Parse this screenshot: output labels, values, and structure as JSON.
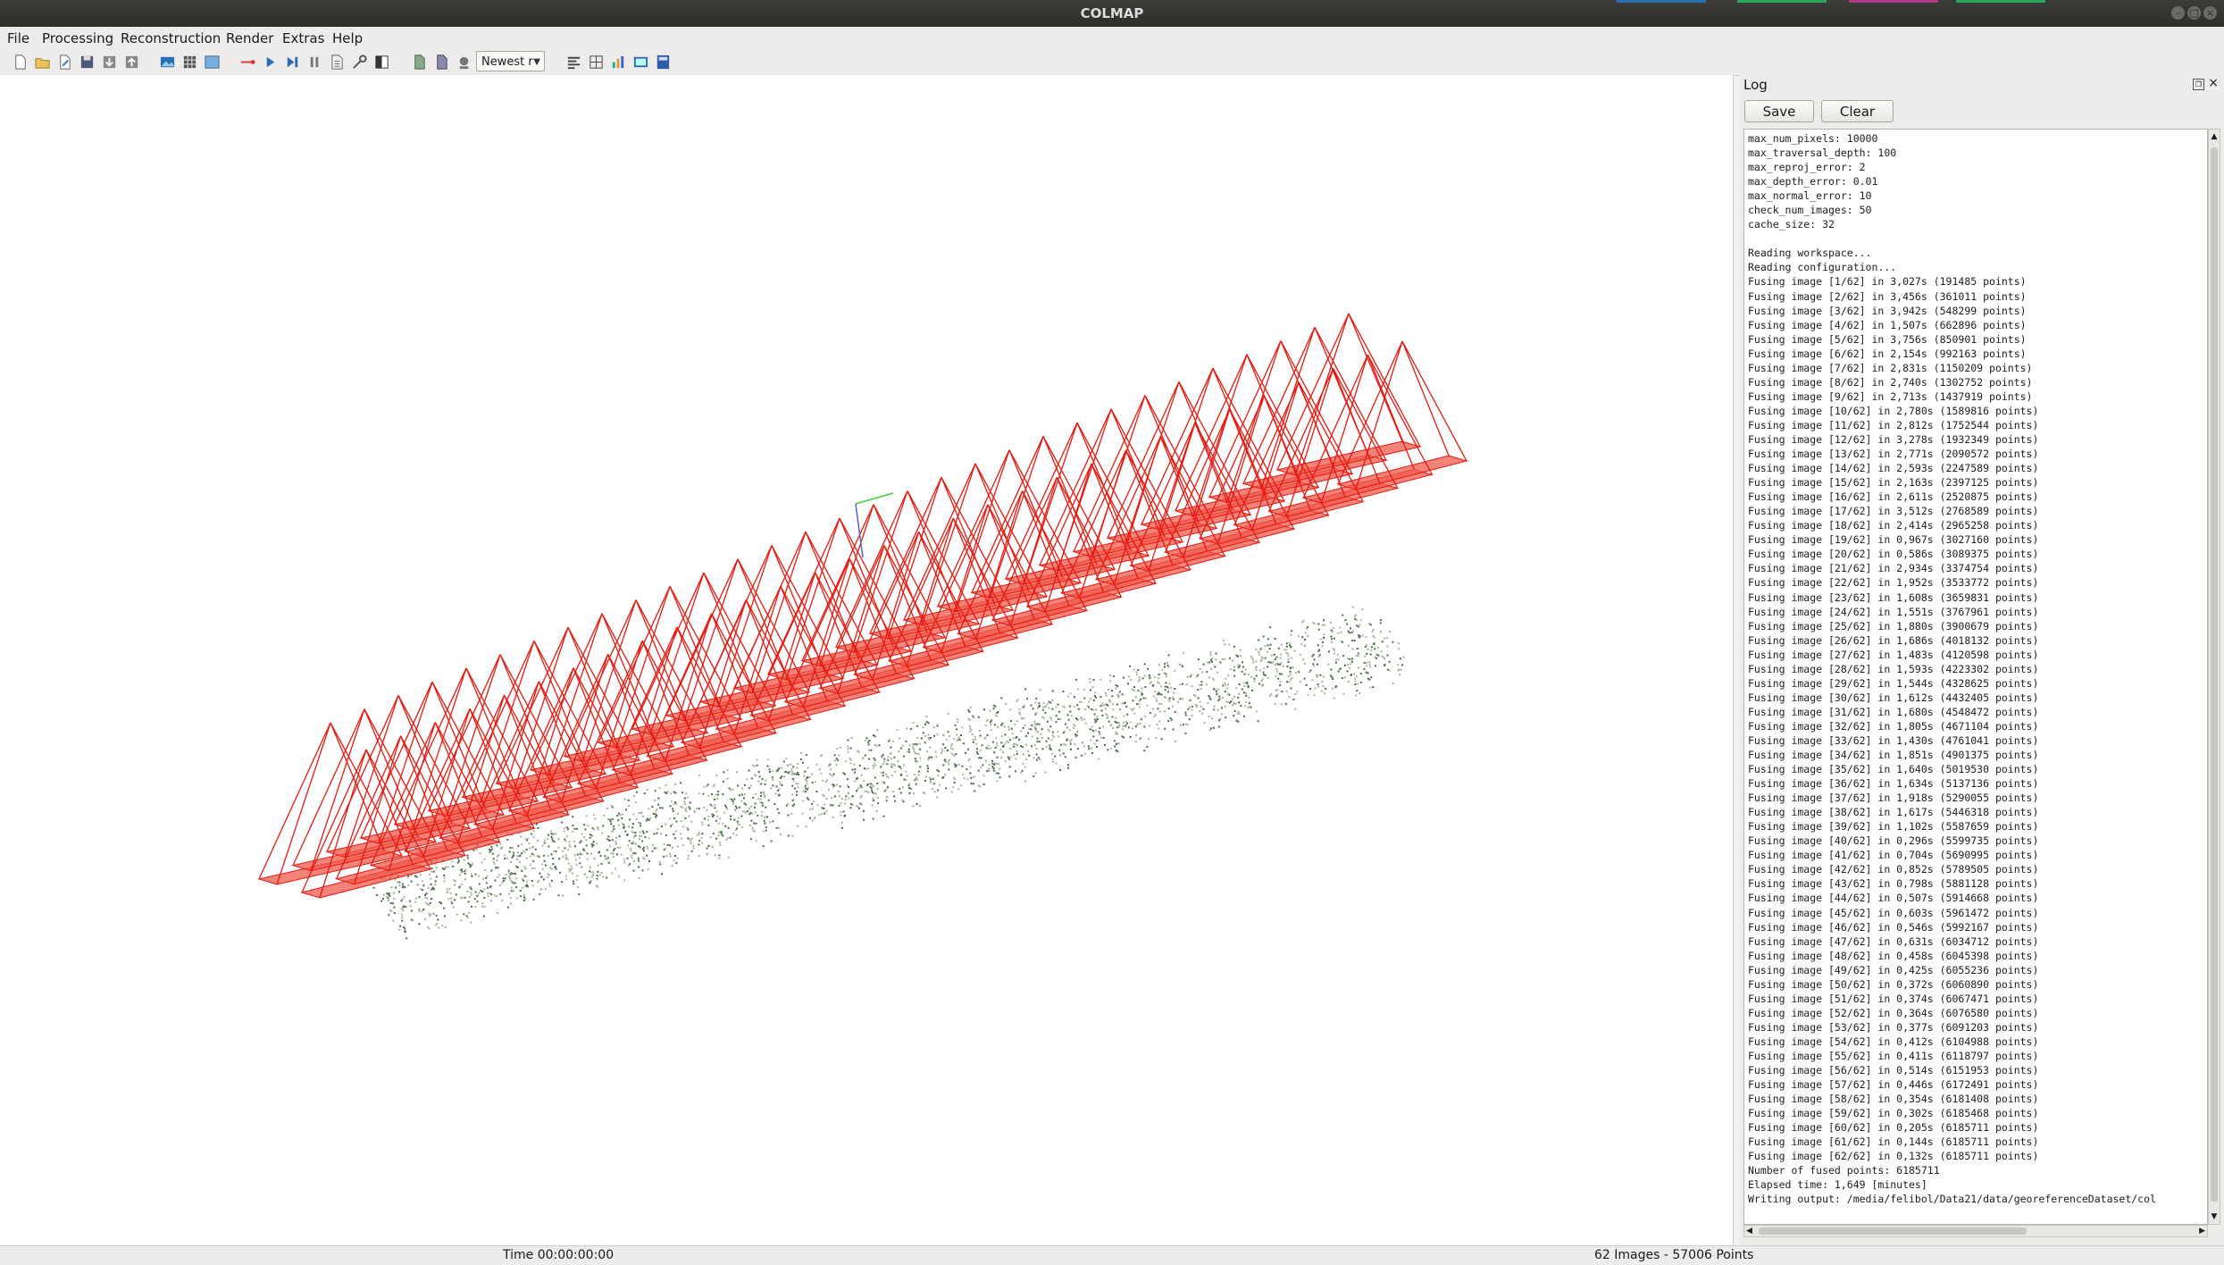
{
  "window": {
    "title": "COLMAP"
  },
  "menu": [
    "File",
    "Processing",
    "Reconstruction",
    "Render",
    "Extras",
    "Help"
  ],
  "toolbar": {
    "icons": [
      "new-project-icon",
      "open-project-icon",
      "edit-project-icon",
      "save-project-icon",
      "import-model-icon",
      "export-model-icon",
      "show-images-icon",
      "database-management-icon",
      "feature-extraction-icon",
      "feature-matching-icon",
      "start-reconstruction-icon",
      "step-reconstruction-icon",
      "pause-reconstruction-icon",
      "reconstruction-options-icon",
      "bundle-adjustment-icon",
      "dense-reconstruction-icon",
      "render-toggle-icon",
      "render-now-icon",
      "render-options-icon",
      "model-stats-icon",
      "grab-image-icon",
      "grab-movie-icon",
      "log-toggle-icon",
      "reconstruction-stats-icon",
      "match-matrix-icon"
    ],
    "zoom_select": "Newest r"
  },
  "log": {
    "title": "Log",
    "save_label": "Save",
    "clear_label": "Clear",
    "lines": [
      "max_num_pixels: 10000",
      "max_traversal_depth: 100",
      "max_reproj_error: 2",
      "max_depth_error: 0.01",
      "max_normal_error: 10",
      "check_num_images: 50",
      "cache_size: 32",
      "",
      "Reading workspace...",
      "Reading configuration...",
      "Fusing image [1/62] in 3,027s (191485 points)",
      "Fusing image [2/62] in 3,456s (361011 points)",
      "Fusing image [3/62] in 3,942s (548299 points)",
      "Fusing image [4/62] in 1,507s (662896 points)",
      "Fusing image [5/62] in 3,756s (850901 points)",
      "Fusing image [6/62] in 2,154s (992163 points)",
      "Fusing image [7/62] in 2,831s (1150209 points)",
      "Fusing image [8/62] in 2,740s (1302752 points)",
      "Fusing image [9/62] in 2,713s (1437919 points)",
      "Fusing image [10/62] in 2,780s (1589816 points)",
      "Fusing image [11/62] in 2,812s (1752544 points)",
      "Fusing image [12/62] in 3,278s (1932349 points)",
      "Fusing image [13/62] in 2,771s (2090572 points)",
      "Fusing image [14/62] in 2,593s (2247589 points)",
      "Fusing image [15/62] in 2,163s (2397125 points)",
      "Fusing image [16/62] in 2,611s (2520875 points)",
      "Fusing image [17/62] in 3,512s (2768589 points)",
      "Fusing image [18/62] in 2,414s (2965258 points)",
      "Fusing image [19/62] in 0,967s (3027160 points)",
      "Fusing image [20/62] in 0,586s (3089375 points)",
      "Fusing image [21/62] in 2,934s (3374754 points)",
      "Fusing image [22/62] in 1,952s (3533772 points)",
      "Fusing image [23/62] in 1,608s (3659831 points)",
      "Fusing image [24/62] in 1,551s (3767961 points)",
      "Fusing image [25/62] in 1,880s (3900679 points)",
      "Fusing image [26/62] in 1,686s (4018132 points)",
      "Fusing image [27/62] in 1,483s (4120598 points)",
      "Fusing image [28/62] in 1,593s (4223302 points)",
      "Fusing image [29/62] in 1,544s (4328625 points)",
      "Fusing image [30/62] in 1,612s (4432405 points)",
      "Fusing image [31/62] in 1,680s (4548472 points)",
      "Fusing image [32/62] in 1,805s (4671104 points)",
      "Fusing image [33/62] in 1,430s (4761041 points)",
      "Fusing image [34/62] in 1,851s (4901375 points)",
      "Fusing image [35/62] in 1,640s (5019530 points)",
      "Fusing image [36/62] in 1,634s (5137136 points)",
      "Fusing image [37/62] in 1,918s (5290055 points)",
      "Fusing image [38/62] in 1,617s (5446318 points)",
      "Fusing image [39/62] in 1,102s (5587659 points)",
      "Fusing image [40/62] in 0,296s (5599735 points)",
      "Fusing image [41/62] in 0,704s (5690995 points)",
      "Fusing image [42/62] in 0,852s (5789505 points)",
      "Fusing image [43/62] in 0,798s (5881128 points)",
      "Fusing image [44/62] in 0,507s (5914668 points)",
      "Fusing image [45/62] in 0,603s (5961472 points)",
      "Fusing image [46/62] in 0,546s (5992167 points)",
      "Fusing image [47/62] in 0,631s (6034712 points)",
      "Fusing image [48/62] in 0,458s (6045398 points)",
      "Fusing image [49/62] in 0,425s (6055236 points)",
      "Fusing image [50/62] in 0,372s (6060890 points)",
      "Fusing image [51/62] in 0,374s (6067471 points)",
      "Fusing image [52/62] in 0,364s (6076580 points)",
      "Fusing image [53/62] in 0,377s (6091203 points)",
      "Fusing image [54/62] in 0,412s (6104988 points)",
      "Fusing image [55/62] in 0,411s (6118797 points)",
      "Fusing image [56/62] in 0,514s (6151953 points)",
      "Fusing image [57/62] in 0,446s (6172491 points)",
      "Fusing image [58/62] in 0,354s (6181408 points)",
      "Fusing image [59/62] in 0,302s (6185468 points)",
      "Fusing image [60/62] in 0,205s (6185711 points)",
      "Fusing image [61/62] in 0,144s (6185711 points)",
      "Fusing image [62/62] in 0,132s (6185711 points)",
      "Number of fused points: 6185711",
      "Elapsed time: 1,649 [minutes]",
      "Writing output: /media/felibol/Data21/data/georeferenceDataset/col"
    ]
  },
  "status": {
    "time": "Time 00:00:00:00",
    "counts": "62 Images - 57006 Points"
  },
  "colors": {
    "camera": "#e8190f",
    "camera_fill": "#f05a4d",
    "points_dark": "#4a6b4a",
    "points_light": "#a9b39a"
  }
}
